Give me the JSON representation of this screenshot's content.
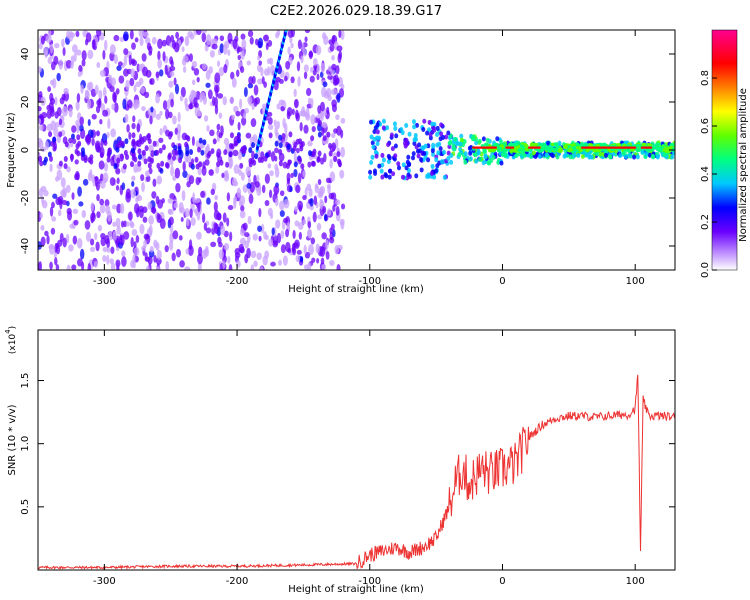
{
  "title": "C2E2.2026.029.18.39.G17",
  "chart_data": [
    {
      "type": "heatmap",
      "name": "spectrogram",
      "xlabel": "Height of straight line (km)",
      "ylabel": "Frequency (Hz)",
      "xlim": [
        -350,
        130
      ],
      "ylim": [
        -50,
        50
      ],
      "x_ticks": [
        -300,
        -200,
        -100,
        0,
        100
      ],
      "y_ticks": [
        -40,
        -20,
        0,
        20,
        40
      ],
      "colorbar": {
        "label": "Normalized spectral amplitude",
        "range": [
          0,
          1
        ],
        "ticks": [
          0.0,
          0.2,
          0.4,
          0.6,
          0.8
        ],
        "colors": [
          "#ffffff",
          "#c8a0ff",
          "#6a00ff",
          "#0000ff",
          "#00c8ff",
          "#00ff80",
          "#60ff00",
          "#ffff00",
          "#ff8000",
          "#ff0000",
          "#ff0060",
          "#ff0090"
        ]
      },
      "features": [
        {
          "name": "noise-region",
          "x_range": [
            -350,
            -120
          ],
          "freq_range": [
            -50,
            50
          ],
          "amplitude": 0.15
        },
        {
          "name": "chirp-line",
          "x_range": [
            -185,
            -163
          ],
          "freq_range": [
            0,
            50
          ],
          "amplitude": 0.3
        },
        {
          "name": "signal-band",
          "x_range": [
            -100,
            130
          ],
          "freq_center": 0,
          "amplitude": 0.55
        },
        {
          "name": "peak-segment",
          "x_range": [
            -25,
            130
          ],
          "freq_center": 1,
          "amplitude": 0.9
        }
      ]
    },
    {
      "type": "line",
      "name": "snr",
      "xlabel": "Height of straight line (km)",
      "ylabel": "SNR (10 * v/v)",
      "y_multiplier": "(x10",
      "y_multiplier_exp": "4",
      "xlim": [
        -350,
        130
      ],
      "ylim": [
        0,
        1.9
      ],
      "x_ticks": [
        -300,
        -200,
        -100,
        0,
        100
      ],
      "y_ticks": [
        0.5,
        1.0,
        1.5
      ],
      "series": [
        {
          "name": "SNR",
          "color": "#ee3333",
          "x": [
            -350,
            -300,
            -250,
            -200,
            -150,
            -110,
            -100,
            -90,
            -80,
            -70,
            -60,
            -50,
            -45,
            -40,
            -35,
            -30,
            -25,
            -20,
            -15,
            -10,
            -5,
            0,
            5,
            10,
            15,
            20,
            30,
            40,
            50,
            60,
            70,
            80,
            90,
            95,
            100,
            102,
            104,
            106,
            110,
            120,
            130
          ],
          "y": [
            0.02,
            0.02,
            0.03,
            0.03,
            0.04,
            0.05,
            0.12,
            0.15,
            0.18,
            0.14,
            0.18,
            0.25,
            0.38,
            0.5,
            0.7,
            0.8,
            0.68,
            0.75,
            0.8,
            0.76,
            0.78,
            0.8,
            0.82,
            0.84,
            0.95,
            1.05,
            1.15,
            1.2,
            1.22,
            1.22,
            1.21,
            1.22,
            1.23,
            1.23,
            1.28,
            1.55,
            0.15,
            1.35,
            1.22,
            1.22,
            1.21
          ]
        }
      ]
    }
  ]
}
